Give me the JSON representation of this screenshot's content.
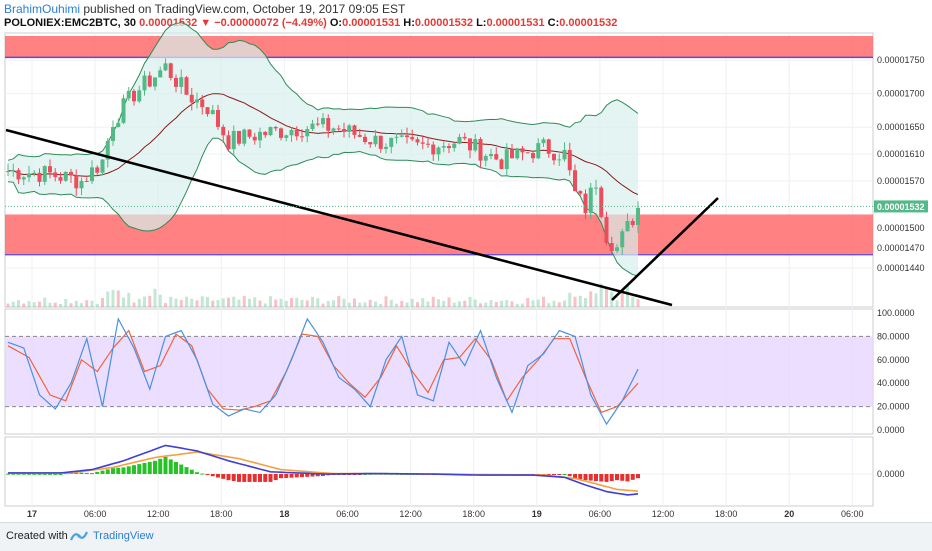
{
  "header": {
    "author": "BrahimOuhimi",
    "published": " published on TradingView.com, October 19, 2017 09:05 EST",
    "symbol": "POLONIEX:EMC2BTC, 30",
    "last": "0.00001532",
    "change": "−0.00000072 (−4.49%)",
    "o_label": "O:",
    "o": "0.00001531",
    "h_label": "H:",
    "h": "0.00001532",
    "l_label": "L:",
    "l": "0.00001531",
    "c_label": "C:",
    "c": "0.00001532"
  },
  "footer": {
    "created_with": "Created with",
    "brand": "TradingView"
  },
  "colors": {
    "up": "#53b987",
    "down": "#eb4d5c",
    "zone": "#ff6b6b",
    "zone_line": "#5b4ae0",
    "bb_fill": "#d9f0ec",
    "bb_band": "#2e8b57",
    "bb_mid": "#8b1a1a",
    "stoch_k": "#4a90e2",
    "stoch_d": "#f0643c",
    "stoch_bg": "#e6d6ff",
    "macd": "#3f3fd6",
    "signal": "#f5a040",
    "hist_up": "#26c226",
    "hist_dn": "#e63030"
  },
  "chart_data": [
    {
      "type": "candlestick",
      "x_labels": [
        "17",
        "06:00",
        "12:00",
        "18:00",
        "18",
        "06:00",
        "12:00",
        "18:00",
        "19",
        "06:00",
        "12:00",
        "18:00",
        "20",
        "06:00"
      ],
      "y_ticks": [
        1.75e-05,
        1.7e-05,
        1.65e-05,
        1.61e-05,
        1.57e-05,
        1.5e-05,
        1.47e-05,
        1.44e-05
      ],
      "y_tick_labels": [
        "0.00001750",
        "0.00001700",
        "0.00001650",
        "0.00001610",
        "0.00001570",
        "0.00001500",
        "0.00001470",
        "0.00001440"
      ],
      "last_price_label": "0.00001532",
      "resistance_zone": [
        1.76e-05,
        1.78e-05
      ],
      "support_zone": [
        1.46e-05,
        1.52e-05
      ],
      "price_anchors": [
        [
          0,
          1.585e-05
        ],
        [
          8,
          1.58e-05
        ],
        [
          14,
          1.57e-05
        ],
        [
          18,
          1.6e-05
        ],
        [
          20,
          1.66e-05
        ],
        [
          24,
          1.7e-05
        ],
        [
          30,
          1.74e-05
        ],
        [
          34,
          1.7e-05
        ],
        [
          38,
          1.68e-05
        ],
        [
          42,
          1.63e-05
        ],
        [
          48,
          1.64e-05
        ],
        [
          56,
          1.65e-05
        ],
        [
          62,
          1.65e-05
        ],
        [
          70,
          1.63e-05
        ],
        [
          78,
          1.62e-05
        ],
        [
          86,
          1.63e-05
        ],
        [
          94,
          1.6e-05
        ],
        [
          102,
          1.62e-05
        ],
        [
          106,
          1.61e-05
        ],
        [
          108,
          1.55e-05
        ],
        [
          110,
          1.53e-05
        ],
        [
          112,
          1.57e-05
        ],
        [
          114,
          1.49e-05
        ],
        [
          116,
          1.47e-05
        ],
        [
          118,
          1.5e-05
        ],
        [
          120,
          1.53e-05
        ]
      ],
      "candle_count": 121
    },
    {
      "type": "line",
      "name": "Stoch",
      "y_tick_labels": [
        "100.0000",
        "80.0000",
        "60.0000",
        "40.0000",
        "20.0000",
        "0.0000"
      ],
      "upper_band": 80,
      "lower_band": 20,
      "k_anchors": [
        [
          0,
          75
        ],
        [
          3,
          70
        ],
        [
          6,
          30
        ],
        [
          9,
          18
        ],
        [
          12,
          40
        ],
        [
          15,
          78
        ],
        [
          18,
          20
        ],
        [
          21,
          95
        ],
        [
          24,
          70
        ],
        [
          27,
          35
        ],
        [
          30,
          80
        ],
        [
          33,
          85
        ],
        [
          36,
          60
        ],
        [
          39,
          22
        ],
        [
          42,
          12
        ],
        [
          45,
          18
        ],
        [
          48,
          15
        ],
        [
          51,
          30
        ],
        [
          54,
          60
        ],
        [
          57,
          95
        ],
        [
          60,
          75
        ],
        [
          63,
          45
        ],
        [
          66,
          35
        ],
        [
          69,
          20
        ],
        [
          72,
          60
        ],
        [
          75,
          80
        ],
        [
          78,
          30
        ],
        [
          81,
          25
        ],
        [
          84,
          75
        ],
        [
          87,
          55
        ],
        [
          90,
          85
        ],
        [
          93,
          45
        ],
        [
          96,
          15
        ],
        [
          99,
          55
        ],
        [
          102,
          65
        ],
        [
          105,
          85
        ],
        [
          108,
          80
        ],
        [
          111,
          30
        ],
        [
          114,
          5
        ],
        [
          117,
          25
        ],
        [
          120,
          52
        ]
      ],
      "d_anchors": [
        [
          0,
          72
        ],
        [
          4,
          62
        ],
        [
          8,
          30
        ],
        [
          11,
          25
        ],
        [
          14,
          60
        ],
        [
          17,
          50
        ],
        [
          20,
          70
        ],
        [
          23,
          85
        ],
        [
          26,
          50
        ],
        [
          29,
          55
        ],
        [
          32,
          82
        ],
        [
          35,
          72
        ],
        [
          38,
          35
        ],
        [
          41,
          18
        ],
        [
          44,
          17
        ],
        [
          47,
          20
        ],
        [
          50,
          25
        ],
        [
          53,
          50
        ],
        [
          56,
          82
        ],
        [
          59,
          80
        ],
        [
          62,
          55
        ],
        [
          65,
          40
        ],
        [
          68,
          28
        ],
        [
          71,
          45
        ],
        [
          74,
          72
        ],
        [
          77,
          50
        ],
        [
          80,
          32
        ],
        [
          83,
          60
        ],
        [
          86,
          62
        ],
        [
          89,
          78
        ],
        [
          92,
          60
        ],
        [
          95,
          25
        ],
        [
          98,
          45
        ],
        [
          101,
          60
        ],
        [
          104,
          78
        ],
        [
          107,
          78
        ],
        [
          110,
          45
        ],
        [
          113,
          15
        ],
        [
          116,
          20
        ],
        [
          120,
          40
        ]
      ]
    },
    {
      "type": "line",
      "name": "MACD",
      "y_tick_labels": [
        "0.0000"
      ],
      "macd_anchors": [
        [
          0,
          0.05
        ],
        [
          10,
          0.05
        ],
        [
          16,
          0.2
        ],
        [
          22,
          0.6
        ],
        [
          30,
          1.3
        ],
        [
          36,
          1.05
        ],
        [
          42,
          0.6
        ],
        [
          50,
          0.1
        ],
        [
          60,
          0.0
        ],
        [
          70,
          0.02
        ],
        [
          80,
          0.0
        ],
        [
          90,
          -0.05
        ],
        [
          100,
          -0.05
        ],
        [
          106,
          -0.15
        ],
        [
          110,
          -0.5
        ],
        [
          114,
          -0.8
        ],
        [
          118,
          -0.95
        ],
        [
          120,
          -0.9
        ]
      ],
      "signal_anchors": [
        [
          0,
          0.04
        ],
        [
          12,
          0.05
        ],
        [
          20,
          0.3
        ],
        [
          28,
          0.75
        ],
        [
          36,
          1.0
        ],
        [
          44,
          0.7
        ],
        [
          52,
          0.2
        ],
        [
          62,
          0.02
        ],
        [
          72,
          0.01
        ],
        [
          82,
          0.0
        ],
        [
          92,
          -0.03
        ],
        [
          102,
          -0.05
        ],
        [
          108,
          -0.2
        ],
        [
          112,
          -0.45
        ],
        [
          116,
          -0.7
        ],
        [
          120,
          -0.78
        ]
      ]
    }
  ]
}
